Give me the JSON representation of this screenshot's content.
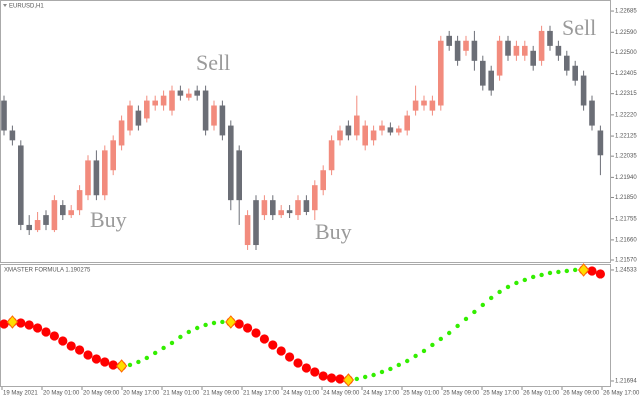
{
  "chart_data": [
    {
      "type": "candlestick",
      "title": "EURUSD,H1",
      "ylim": [
        1.21561,
        1.2273
      ],
      "yticks": [
        1.22685,
        {
          "value": 1.2259,
          "label": "1.22590"
        },
        {
          "value": 1.225,
          "label": "1.22500"
        },
        1.22405,
        1.22315,
        {
          "value": 1.2222,
          "label": "1.22220"
        },
        1.22125,
        1.22035,
        {
          "value": 1.2194,
          "label": "1.21940"
        },
        {
          "value": 1.2185,
          "label": "1.21850"
        },
        1.21755,
        {
          "value": 1.2166,
          "label": "1.21660"
        },
        {
          "value": 1.2157,
          "label": "1.21570"
        }
      ],
      "bull_color": "#f28b7d",
      "bear_color": "#6b6e76",
      "open": [
        1.22284,
        1.2215,
        1.22083,
        1.21727,
        1.21704,
        1.21771,
        1.21704,
        1.21816,
        1.21771,
        1.21793,
        1.2186,
        1.22016,
        1.2186,
        1.21972,
        1.22083,
        1.2215,
        1.22239,
        1.22204,
        1.22262,
        1.22262,
        1.22239,
        1.22329,
        1.22297,
        1.22329,
        1.22329,
        1.22172,
        1.22262,
        1.22172,
        1.22061,
        1.21637,
        1.21838,
        1.21771,
        1.21838,
        1.21771,
        1.21793,
        1.21771,
        1.21838,
        1.21793,
        1.21883,
        1.21972,
        1.22106,
        1.22172,
        1.22128,
        1.22083,
        1.22106,
        1.2215,
        1.22164,
        1.22141,
        1.2215,
        1.22239,
        1.22262,
        1.22239,
        1.22262,
        1.22574,
        1.22552,
        1.22507,
        1.22552,
        1.22462,
        1.22418,
        1.22396,
        1.22552,
        1.22485,
        1.22485,
        1.22507,
        1.22462,
        1.22596,
        1.22529,
        1.22485,
        1.2244,
        1.22396,
        1.22284,
        1.2215
      ],
      "high": [
        1.22306,
        1.22172,
        1.22106,
        1.21771,
        1.21785,
        1.21793,
        1.2186,
        1.21838,
        1.21816,
        1.21905,
        1.22039,
        1.22061,
        1.22083,
        1.22128,
        1.22217,
        1.22284,
        1.22262,
        1.22306,
        1.22306,
        1.22329,
        1.22351,
        1.22351,
        1.22338,
        1.22351,
        1.22351,
        1.22284,
        1.22284,
        1.22195,
        1.22083,
        1.21793,
        1.2186,
        1.2186,
        1.2186,
        1.21816,
        1.21816,
        1.2186,
        1.2186,
        1.21927,
        1.21994,
        1.22128,
        1.22172,
        1.22195,
        1.22306,
        1.22195,
        1.22172,
        1.22195,
        1.22186,
        1.22172,
        1.22239,
        1.22351,
        1.22306,
        1.22306,
        1.22574,
        1.22596,
        1.22574,
        1.22574,
        1.22596,
        1.22485,
        1.2244,
        1.22574,
        1.22574,
        1.22552,
        1.22552,
        1.22529,
        1.22619,
        1.22619,
        1.22552,
        1.22507,
        1.22462,
        1.22418,
        1.22306,
        1.22172
      ],
      "low": [
        1.22128,
        1.22083,
        1.21704,
        1.21682,
        1.21695,
        1.21704,
        1.21695,
        1.21749,
        1.21758,
        1.21771,
        1.21838,
        1.21838,
        1.21838,
        1.2195,
        1.22061,
        1.22128,
        1.2215,
        1.22186,
        1.22239,
        1.22239,
        1.22217,
        1.22284,
        1.22284,
        1.22284,
        1.22128,
        1.2215,
        1.22106,
        1.21793,
        1.21727,
        1.21615,
        1.21615,
        1.21749,
        1.21749,
        1.21758,
        1.21758,
        1.21749,
        1.21771,
        1.21749,
        1.2186,
        1.2195,
        1.22083,
        1.22106,
        1.22106,
        1.22061,
        1.22083,
        1.22128,
        1.22128,
        1.22128,
        1.22128,
        1.22217,
        1.22239,
        1.22217,
        1.22239,
        1.22507,
        1.2244,
        1.22485,
        1.22418,
        1.22329,
        1.22306,
        1.22373,
        1.22462,
        1.22462,
        1.22462,
        1.22418,
        1.2244,
        1.22507,
        1.22462,
        1.22396,
        1.22351,
        1.22239,
        1.2215,
        1.2195
      ],
      "close": [
        1.2215,
        1.22106,
        1.21727,
        1.21704,
        1.21749,
        1.21727,
        1.21838,
        1.21771,
        1.21793,
        1.21883,
        1.22016,
        1.2186,
        1.22061,
        1.22106,
        1.22195,
        1.22262,
        1.22172,
        1.22284,
        1.22284,
        1.22306,
        1.22329,
        1.22306,
        1.22315,
        1.22306,
        1.2215,
        1.22262,
        1.22128,
        1.21838,
        1.21838,
        1.21771,
        1.21637,
        1.21838,
        1.21771,
        1.21793,
        1.2178,
        1.21838,
        1.21785,
        1.21905,
        1.21972,
        1.22106,
        1.2215,
        1.22128,
        1.22217,
        1.22172,
        1.2215,
        1.22172,
        1.22141,
        1.22159,
        1.22217,
        1.22284,
        1.22284,
        1.22284,
        1.22552,
        1.22529,
        1.22462,
        1.22552,
        1.22462,
        1.22351,
        1.22329,
        1.22552,
        1.22485,
        1.22529,
        1.22529,
        1.2244,
        1.22596,
        1.22529,
        1.22485,
        1.22418,
        1.22373,
        1.22262,
        1.22172,
        1.22039
      ],
      "annotations": [
        "Buy",
        "Sell",
        "Buy",
        "Sell"
      ],
      "xticks": [
        "19 May 2021",
        "20 May 01:00",
        "20 May 09:00",
        "20 May 17:00",
        "21 May 01:00",
        "21 May 09:00",
        "21 May 17:00",
        "24 May 01:00",
        "24 May 09:00",
        "24 May 17:00",
        "25 May 01:00",
        "25 May 09:00",
        "25 May 17:00",
        "26 May 01:00",
        "26 May 09:00",
        "26 May 17:00"
      ]
    },
    {
      "type": "dots",
      "title": "XMASTER FORMULA 1.190275",
      "ylim": [
        1.2154,
        1.2466
      ],
      "yticks": [
        1.24533,
        1.21694
      ],
      "series": [
        {
          "color": "#ff0000",
          "values": [
            1.23152,
            1.23203,
            1.23177,
            1.23126,
            1.23049,
            1.22947,
            1.22845,
            1.22717,
            1.22589,
            1.22487,
            1.22359,
            1.22257,
            1.2218,
            1.22103,
            1.22077,
            null,
            null,
            null,
            null,
            null,
            null,
            null,
            null,
            null,
            null,
            null,
            null,
            1.23203,
            1.23152,
            1.23049,
            1.22921,
            1.22768,
            1.22615,
            1.22461,
            1.22308,
            1.22154,
            1.22026,
            1.21924,
            1.21822,
            1.21771,
            1.21745,
            1.21719,
            null,
            null,
            null,
            null,
            null,
            null,
            null,
            null,
            null,
            null,
            null,
            null,
            null,
            null,
            null,
            null,
            null,
            null,
            null,
            null,
            null,
            null,
            null,
            null,
            null,
            null,
            null,
            1.24533,
            1.24507,
            1.24431
          ]
        },
        {
          "color": "#33ee00",
          "values": [
            null,
            null,
            null,
            null,
            null,
            null,
            null,
            null,
            null,
            null,
            null,
            null,
            null,
            null,
            null,
            1.22103,
            1.2218,
            1.22282,
            1.2241,
            1.22538,
            1.22666,
            1.22819,
            1.22947,
            1.23049,
            1.23126,
            1.23177,
            1.23203,
            null,
            null,
            null,
            null,
            null,
            null,
            null,
            null,
            null,
            null,
            null,
            null,
            null,
            null,
            null,
            1.21745,
            1.21796,
            1.21847,
            1.21924,
            1.22001,
            1.22103,
            1.22205,
            1.22333,
            1.22461,
            1.22615,
            1.22768,
            1.22921,
            1.23101,
            1.2328,
            1.23459,
            1.23638,
            1.23817,
            1.2397,
            1.24098,
            1.242,
            1.24277,
            1.24354,
            1.24405,
            1.24456,
            1.24482,
            1.24507,
            1.24533,
            null,
            null,
            null
          ]
        },
        {
          "color": "#ffdd00",
          "values": [
            null,
            1.23203,
            null,
            null,
            null,
            null,
            null,
            null,
            null,
            null,
            null,
            null,
            null,
            null,
            1.22077,
            null,
            null,
            null,
            null,
            null,
            null,
            null,
            null,
            null,
            null,
            null,
            null,
            1.23203,
            null,
            null,
            null,
            null,
            null,
            null,
            null,
            null,
            null,
            null,
            null,
            null,
            null,
            1.21719,
            null,
            null,
            null,
            null,
            null,
            null,
            null,
            null,
            null,
            null,
            null,
            null,
            null,
            null,
            null,
            null,
            null,
            null,
            null,
            null,
            null,
            null,
            null,
            null,
            null,
            null,
            null,
            1.24533,
            null,
            null
          ]
        }
      ]
    }
  ]
}
